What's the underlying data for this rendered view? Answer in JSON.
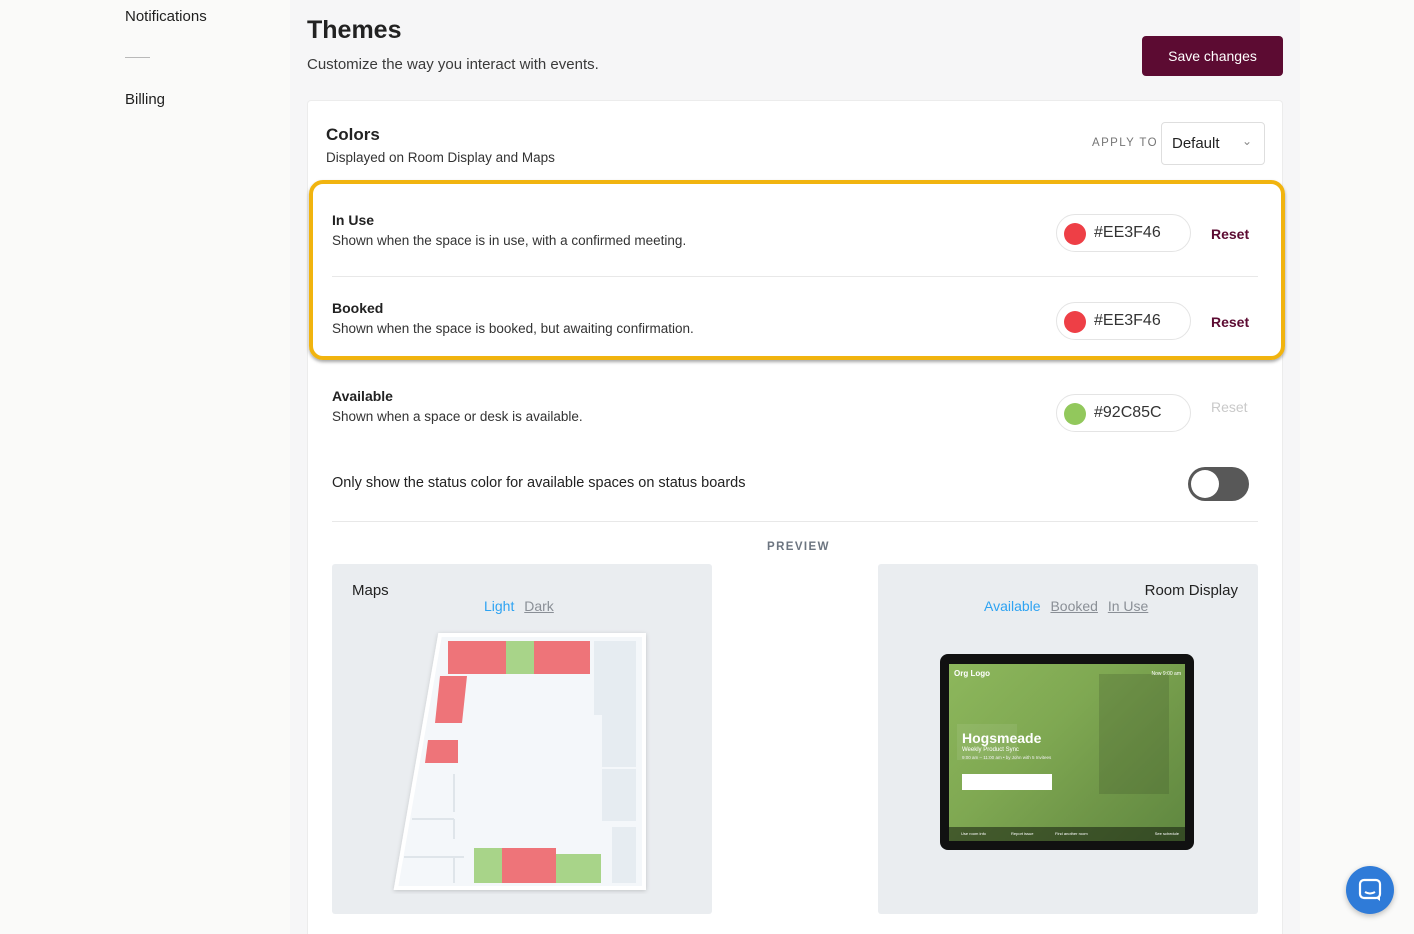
{
  "sidebar": {
    "items": [
      {
        "label": "Notifications"
      },
      {
        "label": "Billing"
      }
    ]
  },
  "header": {
    "title": "Themes",
    "subtitle": "Customize the way you interact with events.",
    "save_label": "Save changes"
  },
  "colors_card": {
    "title": "Colors",
    "subtitle": "Displayed on Room Display and Maps",
    "apply_to_label": "APPLY TO",
    "apply_to_value": "Default",
    "rows": [
      {
        "title": "In Use",
        "description": "Shown when the space is in use, with a confirmed meeting.",
        "hex": "#EE3F46",
        "color": "#EE3F46",
        "reset_label": "Reset"
      },
      {
        "title": "Booked",
        "description": "Shown when the space is booked, but awaiting confirmation.",
        "hex": "#EE3F46",
        "color": "#EE3F46",
        "reset_label": "Reset"
      },
      {
        "title": "Available",
        "description": "Shown when a space or desk is available.",
        "hex": "#92C85C",
        "color": "#92C85C",
        "reset_label": "Reset"
      }
    ],
    "toggle": {
      "label": "Only show the status color for available spaces on status boards",
      "on": false
    }
  },
  "preview": {
    "label": "PREVIEW",
    "maps": {
      "title": "Maps",
      "links": [
        "Light",
        "Dark"
      ],
      "active": "Light"
    },
    "room_display": {
      "title": "Room Display",
      "links": [
        "Available",
        "Booked",
        "In Use"
      ],
      "active": "Available",
      "screen": {
        "org_logo": "Org Logo",
        "time": "Now 9:00 am",
        "room_name": "Hogsmeade",
        "meeting": "Weekly Product Sync",
        "meeting_time": "9:00 am – 11:00 am • by John with 5 Invitees",
        "footer_items": [
          "Use room info",
          "Report issue",
          "Find another room",
          "See schedule"
        ]
      }
    }
  },
  "accent_colors": {
    "brand": "#5c0b32",
    "highlight": "#f1b40f",
    "link": "#2ea3f2",
    "chat": "#2f7bd8"
  }
}
